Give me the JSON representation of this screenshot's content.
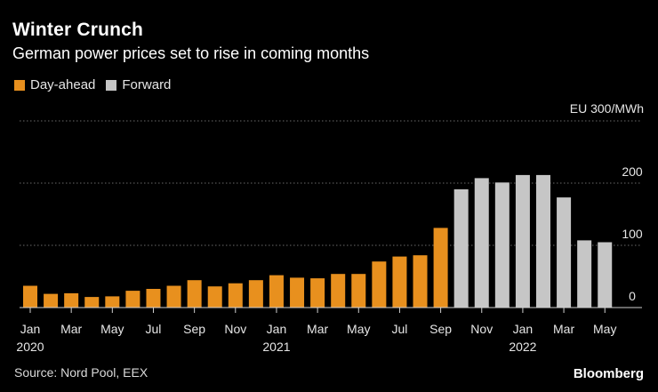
{
  "header": {
    "title": "Winter Crunch",
    "subtitle": "German power prices set to rise in coming months"
  },
  "legend": [
    {
      "label": "Day-ahead",
      "color": "#e8901e"
    },
    {
      "label": "Forward",
      "color": "#c6c6c6"
    }
  ],
  "footer": {
    "source": "Source: Nord Pool, EEX",
    "brand": "Bloomberg"
  },
  "chart_data": {
    "type": "bar",
    "title": "Winter Crunch",
    "subtitle": "German power prices set to rise in coming months",
    "xlabel": "",
    "ylabel": "EU 300/MWh",
    "ylim": [
      0,
      300
    ],
    "yticks": [
      0,
      100,
      200
    ],
    "grid": true,
    "categories": [
      "Jan 2020",
      "Feb 2020",
      "Mar 2020",
      "Apr 2020",
      "May 2020",
      "Jun 2020",
      "Jul 2020",
      "Aug 2020",
      "Sep 2020",
      "Oct 2020",
      "Nov 2020",
      "Dec 2020",
      "Jan 2021",
      "Feb 2021",
      "Mar 2021",
      "Apr 2021",
      "May 2021",
      "Jun 2021",
      "Jul 2021",
      "Aug 2021",
      "Sep 2021",
      "Oct 2021",
      "Nov 2021",
      "Dec 2021",
      "Jan 2022",
      "Feb 2022",
      "Mar 2022",
      "Apr 2022",
      "May 2022"
    ],
    "series": [
      {
        "name": "Day-ahead",
        "color": "#e8901e",
        "values": [
          35,
          22,
          23,
          17,
          18,
          27,
          30,
          35,
          44,
          34,
          39,
          44,
          52,
          48,
          47,
          54,
          54,
          74,
          82,
          84,
          128,
          null,
          null,
          null,
          null,
          null,
          null,
          null,
          null
        ]
      },
      {
        "name": "Forward",
        "color": "#c6c6c6",
        "values": [
          null,
          null,
          null,
          null,
          null,
          null,
          null,
          null,
          null,
          null,
          null,
          null,
          null,
          null,
          null,
          null,
          null,
          null,
          null,
          null,
          null,
          190,
          208,
          201,
          213,
          213,
          177,
          108,
          105
        ]
      }
    ],
    "x_tick_labels": [
      {
        "index": 0,
        "month": "Jan",
        "year": "2020"
      },
      {
        "index": 2,
        "month": "Mar",
        "year": ""
      },
      {
        "index": 4,
        "month": "May",
        "year": ""
      },
      {
        "index": 6,
        "month": "Jul",
        "year": ""
      },
      {
        "index": 8,
        "month": "Sep",
        "year": ""
      },
      {
        "index": 10,
        "month": "Nov",
        "year": ""
      },
      {
        "index": 12,
        "month": "Jan",
        "year": "2021"
      },
      {
        "index": 14,
        "month": "Mar",
        "year": ""
      },
      {
        "index": 16,
        "month": "May",
        "year": ""
      },
      {
        "index": 18,
        "month": "Jul",
        "year": ""
      },
      {
        "index": 20,
        "month": "Sep",
        "year": ""
      },
      {
        "index": 22,
        "month": "Nov",
        "year": ""
      },
      {
        "index": 24,
        "month": "Jan",
        "year": "2022"
      },
      {
        "index": 26,
        "month": "Mar",
        "year": ""
      },
      {
        "index": 28,
        "month": "May",
        "year": ""
      }
    ]
  }
}
